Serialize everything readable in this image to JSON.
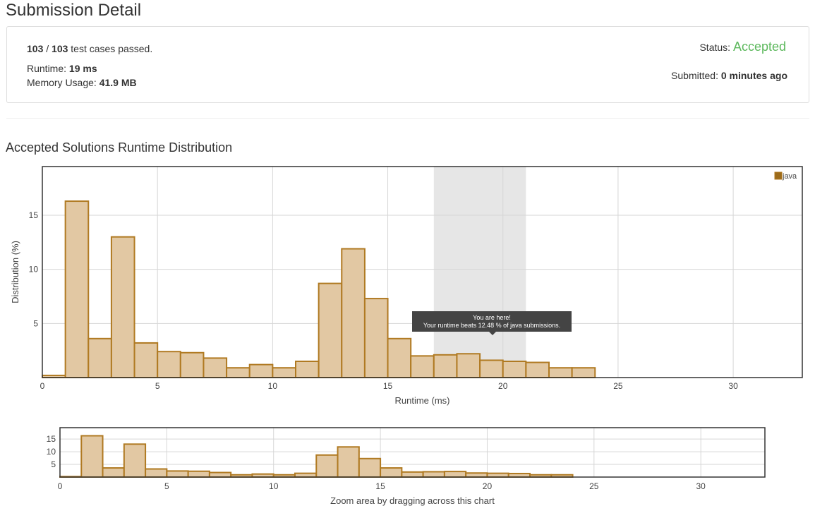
{
  "page": {
    "title": "Submission Detail",
    "section_title": "Accepted Solutions Runtime Distribution"
  },
  "summary": {
    "passed": "103",
    "total": "103",
    "sep": " / ",
    "passed_text": " test cases passed.",
    "runtime_label": "Runtime: ",
    "runtime_value": "19 ms",
    "memory_label": "Memory Usage: ",
    "memory_value": "41.9 MB",
    "status_label": "Status: ",
    "status_value": "Accepted",
    "submitted_label": "Submitted: ",
    "submitted_value": "0 minutes ago"
  },
  "colors": {
    "bar_fill": "#e2c8a3",
    "bar_stroke": "#b07a22",
    "legend_swatch": "#9c6b1a",
    "highlight_band": "#e6e6e6",
    "status_green": "#5cb85c"
  },
  "tooltip": {
    "line1": "You are here!",
    "line2": "Your runtime beats 12.48 % of java submissions."
  },
  "chart_data": [
    {
      "type": "bar",
      "xlabel": "Runtime (ms)",
      "ylabel": "Distribution (%)",
      "xlim": [
        0,
        33
      ],
      "ylim": [
        0,
        19.5
      ],
      "xticks": [
        0,
        5,
        10,
        15,
        20,
        25,
        30
      ],
      "yticks": [
        5,
        10,
        15
      ],
      "grid": true,
      "legend_position": "top-right",
      "highlight_range": [
        17,
        21
      ],
      "bin_width": 1,
      "series": [
        {
          "name": "java",
          "x": [
            0,
            1,
            2,
            3,
            4,
            5,
            6,
            7,
            8,
            9,
            10,
            11,
            12,
            13,
            14,
            15,
            16,
            17,
            18,
            19,
            20,
            21,
            22,
            23
          ],
          "values": [
            0.2,
            16.3,
            3.6,
            13.0,
            3.2,
            2.4,
            2.3,
            1.8,
            0.9,
            1.2,
            0.9,
            1.5,
            8.7,
            11.9,
            7.3,
            3.6,
            2.0,
            2.1,
            2.2,
            1.6,
            1.5,
            1.4,
            0.9,
            0.9
          ]
        }
      ]
    },
    {
      "type": "bar",
      "xlabel": "Zoom area by dragging across this chart",
      "xlim": [
        0,
        33
      ],
      "ylim": [
        0,
        19.5
      ],
      "xticks": [
        0,
        5,
        10,
        15,
        20,
        25,
        30
      ],
      "yticks": [
        5,
        10,
        15
      ],
      "grid": true,
      "bin_width": 1,
      "series": [
        {
          "x": [
            0,
            1,
            2,
            3,
            4,
            5,
            6,
            7,
            8,
            9,
            10,
            11,
            12,
            13,
            14,
            15,
            16,
            17,
            18,
            19,
            20,
            21,
            22,
            23
          ],
          "values": [
            0.2,
            16.3,
            3.6,
            13.0,
            3.2,
            2.4,
            2.3,
            1.8,
            0.9,
            1.2,
            0.9,
            1.5,
            8.7,
            11.9,
            7.3,
            3.6,
            2.0,
            2.1,
            2.2,
            1.6,
            1.5,
            1.4,
            0.9,
            0.9
          ]
        }
      ]
    }
  ]
}
